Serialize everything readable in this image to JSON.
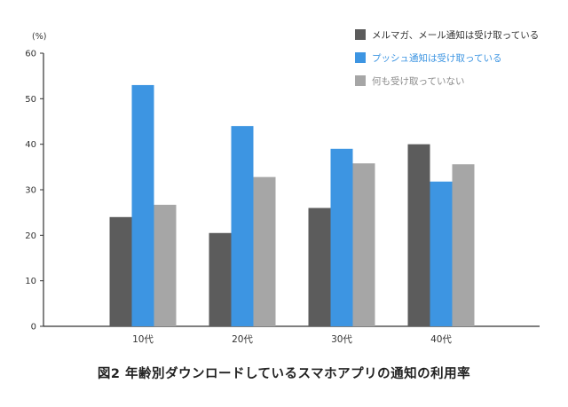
{
  "chart_data": {
    "type": "bar",
    "title": "図2 年齢別ダウンロードしているスマホアプリの通知の利用率",
    "ylabel": "(%)",
    "xlabel": "",
    "ylim": [
      0,
      60
    ],
    "yticks": [
      0,
      10,
      20,
      30,
      40,
      50,
      60
    ],
    "categories": [
      "10代",
      "20代",
      "30代",
      "40代"
    ],
    "series": [
      {
        "name": "メルマガ、メール通知は受け取っている",
        "color": "#5c5c5c",
        "values": [
          24,
          20.5,
          26,
          40
        ]
      },
      {
        "name": "プッシュ通知は受け取っている",
        "color": "#3d95e2",
        "values": [
          53,
          44,
          39,
          31.8
        ]
      },
      {
        "name": "何も受け取っていない",
        "color": "#a6a6a6",
        "values": [
          26.7,
          32.8,
          35.8,
          35.6
        ]
      }
    ],
    "legend_position": "top-right",
    "grid": false
  },
  "legend_text_colors": [
    "#333333",
    "#3d95e2",
    "#8a8a8a"
  ]
}
